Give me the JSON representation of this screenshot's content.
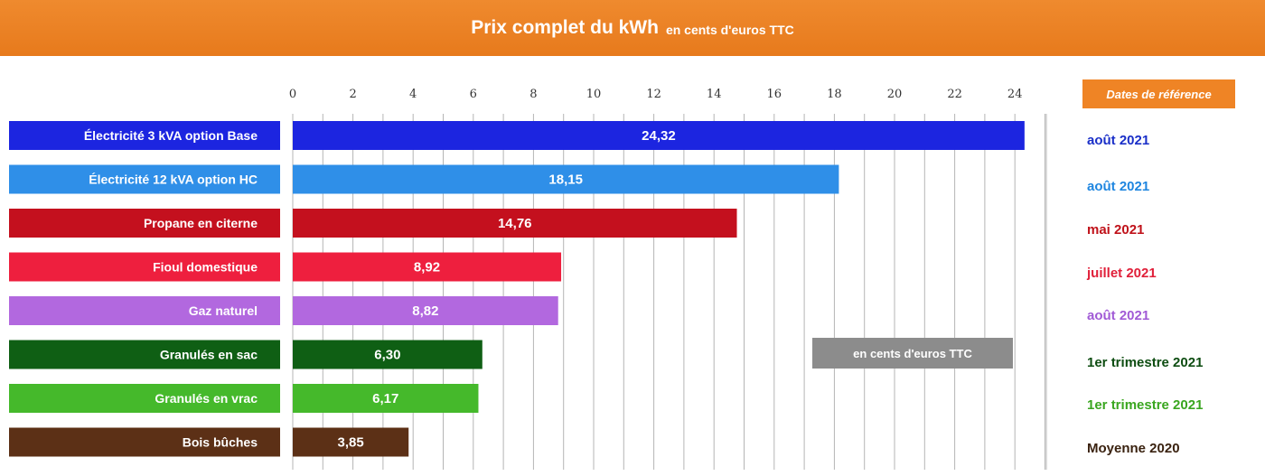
{
  "header": {
    "title": "Prix complet du kWh",
    "subtitle": "en cents d'euros TTC"
  },
  "reference": {
    "header": "Dates de référence",
    "dates": [
      {
        "text": "août 2021",
        "color": "#1a2fc8"
      },
      {
        "text": "août 2021",
        "color": "#1f86e0"
      },
      {
        "text": "mai 2021",
        "color": "#c0121a"
      },
      {
        "text": "juillet 2021",
        "color": "#e0203a"
      },
      {
        "text": "août 2021",
        "color": "#a15ad6"
      },
      {
        "text": "1er trimestre 2021",
        "color": "#0e4d12"
      },
      {
        "text": "1er trimestre 2021",
        "color": "#3aa620"
      },
      {
        "text": "Moyenne 2020",
        "color": "#3a2210"
      }
    ]
  },
  "note": "en cents d'euros TTC",
  "chart_data": {
    "type": "bar",
    "orientation": "horizontal",
    "title": "Prix complet du kWh",
    "subtitle": "en cents d'euros TTC",
    "categories": [
      "Électricité 3 kVA option Base",
      "Électricité 12 kVA option HC",
      "Propane en citerne",
      "Fioul domestique",
      "Gaz naturel",
      "Granulés en sac",
      "Granulés en vrac",
      "Bois bûches"
    ],
    "values": [
      24.32,
      18.15,
      14.76,
      8.92,
      8.82,
      6.3,
      6.17,
      3.85
    ],
    "value_labels": [
      "24,32",
      "18,15",
      "14,76",
      "8,92",
      "8,82",
      "6,30",
      "6,17",
      "3,85"
    ],
    "colors": [
      "#1c25e0",
      "#2f8fe8",
      "#c4101e",
      "#ee1f3e",
      "#b268df",
      "#0f5f14",
      "#45b92b",
      "#5c3016"
    ],
    "xlim": [
      0,
      25
    ],
    "xticks": [
      0,
      2,
      4,
      6,
      8,
      10,
      12,
      14,
      16,
      18,
      20,
      22,
      24
    ],
    "grid": true,
    "axis_position": "top"
  }
}
